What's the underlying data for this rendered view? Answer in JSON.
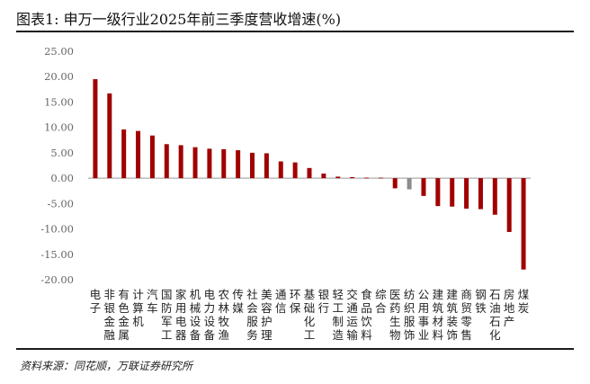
{
  "figure": {
    "title": "图表1:  申万一级行业2025年前三季度营收增速(%)",
    "source": "资料来源：同花顺，万联证券研究所"
  },
  "colors": {
    "positive_bar": "#a00000",
    "negative_bar": "#a00000",
    "highlight_bar": "#8c8c8c",
    "axis": "#999999",
    "tick_text": "#666666"
  },
  "chart_data": {
    "type": "bar",
    "title": "",
    "xlabel": "",
    "ylabel": "",
    "ylim": [
      -20,
      25
    ],
    "yticks": [
      25,
      20,
      15,
      10,
      5,
      0,
      -5,
      -10,
      -15,
      -20
    ],
    "ytick_labels": [
      "25.00",
      "20.00",
      "15.00",
      "10.00",
      "5.00",
      "0.00",
      "-5.00",
      "-10.00",
      "-15.00",
      "-20.00"
    ],
    "grid": false,
    "legend": "none",
    "categories": [
      "电子",
      "非银金融",
      "有色金属",
      "计算机",
      "汽车",
      "国防军工",
      "家用电器",
      "机械设备",
      "电力设备",
      "农林牧渔",
      "传媒",
      "社会服务",
      "美容护理",
      "通信",
      "环保",
      "基础化工",
      "银行",
      "轻工制造",
      "交通运输",
      "食品饮料",
      "综合",
      "医药生物",
      "纺织服饰",
      "公用事业",
      "建筑材料",
      "建筑装饰",
      "商贸零售",
      "钢铁",
      "石油石化",
      "房地产",
      "煤炭"
    ],
    "values": [
      19.5,
      16.7,
      9.6,
      9.3,
      8.4,
      6.7,
      6.5,
      6.1,
      5.8,
      5.7,
      5.5,
      5.0,
      4.9,
      3.3,
      3.1,
      2.0,
      0.9,
      0.3,
      0.2,
      0.1,
      0.1,
      -2.0,
      -2.2,
      -3.5,
      -5.5,
      -5.6,
      -6.0,
      -6.1,
      -7.2,
      -10.6,
      -18.0
    ],
    "highlight_index": 22
  }
}
